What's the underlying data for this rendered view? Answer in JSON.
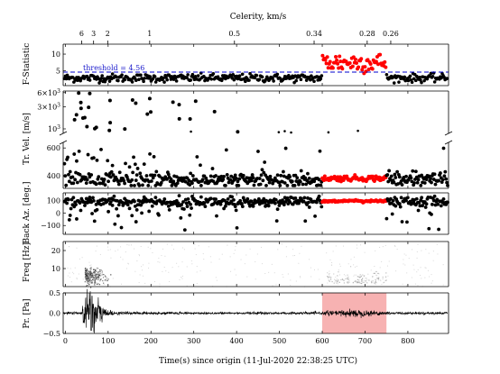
{
  "chart_data": {
    "type": "scatter",
    "top_axis": {
      "label": "Celerity, km/s",
      "ticks": [
        {
          "label": "6",
          "time": 38
        },
        {
          "label": "3",
          "time": 66
        },
        {
          "label": "2",
          "time": 99
        },
        {
          "label": "1",
          "time": 197
        },
        {
          "label": "0.5",
          "time": 395
        },
        {
          "label": "0.34",
          "time": 581
        },
        {
          "label": "0.28",
          "time": 705
        },
        {
          "label": "0.26",
          "time": 760
        }
      ]
    },
    "x_axis": {
      "label": "Time(s) since origin (11-Jul-2020 22:38:25 UTC)",
      "range": [
        -5,
        895
      ],
      "ticks": [
        "0",
        "100",
        "200",
        "300",
        "400",
        "500",
        "600",
        "700",
        "800"
      ]
    },
    "detection_window": [
      600,
      750
    ],
    "colors": {
      "background_points": "#000000",
      "detection_points": "#ff0000",
      "threshold_line": "#0000cc",
      "window_fill": "#f7b2b2"
    },
    "panels": [
      {
        "name": "fstat",
        "ylabel": "F-Statistic",
        "ylim": [
          0.5,
          13
        ],
        "yticks": [
          {
            "v": 5,
            "label": "5"
          },
          {
            "v": 10,
            "label": "10"
          }
        ],
        "threshold": 4.56,
        "threshold_label": "threshold = 4.56",
        "background": {
          "level": 2.8,
          "spread": 0.6
        },
        "detection": {
          "level": 7.5,
          "spread": 2.6
        }
      },
      {
        "name": "trace-velocity",
        "ylabel": "Tr. Vel. [m/s]",
        "upper_scale": "log",
        "upper_ylim": [
          800,
          6500
        ],
        "upper_yticks": [
          {
            "v": 1000,
            "base": "10",
            "exp": "3"
          },
          {
            "v": 3000,
            "base": "3×10",
            "exp": "3"
          },
          {
            "v": 6000,
            "base": "6×10",
            "exp": "3"
          }
        ],
        "lower_ylim": [
          310,
          640
        ],
        "lower_yticks": [
          {
            "v": 400,
            "label": "400"
          },
          {
            "v": 600,
            "label": "600"
          }
        ],
        "background": {
          "level": 370,
          "spread": 25
        },
        "detection": {
          "level": 382,
          "spread": 10
        }
      },
      {
        "name": "back-azimuth",
        "ylabel": "Back Az. [deg.]",
        "ylim": [
          -170,
          160
        ],
        "yticks": [
          {
            "v": 100,
            "label": "100"
          },
          {
            "v": 0,
            "label": "0"
          },
          {
            "v": -100,
            "label": "−100"
          }
        ],
        "background": {
          "level": 90,
          "spread": 20
        },
        "detection": {
          "level": 95,
          "spread": 4
        }
      },
      {
        "name": "frequency",
        "ylabel": "Freq [Hz]",
        "ylim": [
          0,
          25
        ],
        "yticks": [
          {
            "v": 10,
            "label": "10"
          },
          {
            "v": 20,
            "label": "20"
          }
        ]
      },
      {
        "name": "pressure",
        "ylabel": "Pr. [Pa]",
        "ylim": [
          -0.5,
          0.5
        ],
        "yticks": [
          {
            "v": 0.5,
            "label": "0.5"
          },
          {
            "v": 0,
            "label": "0.0"
          },
          {
            "v": -0.5,
            "label": "−0.5"
          }
        ]
      }
    ]
  }
}
